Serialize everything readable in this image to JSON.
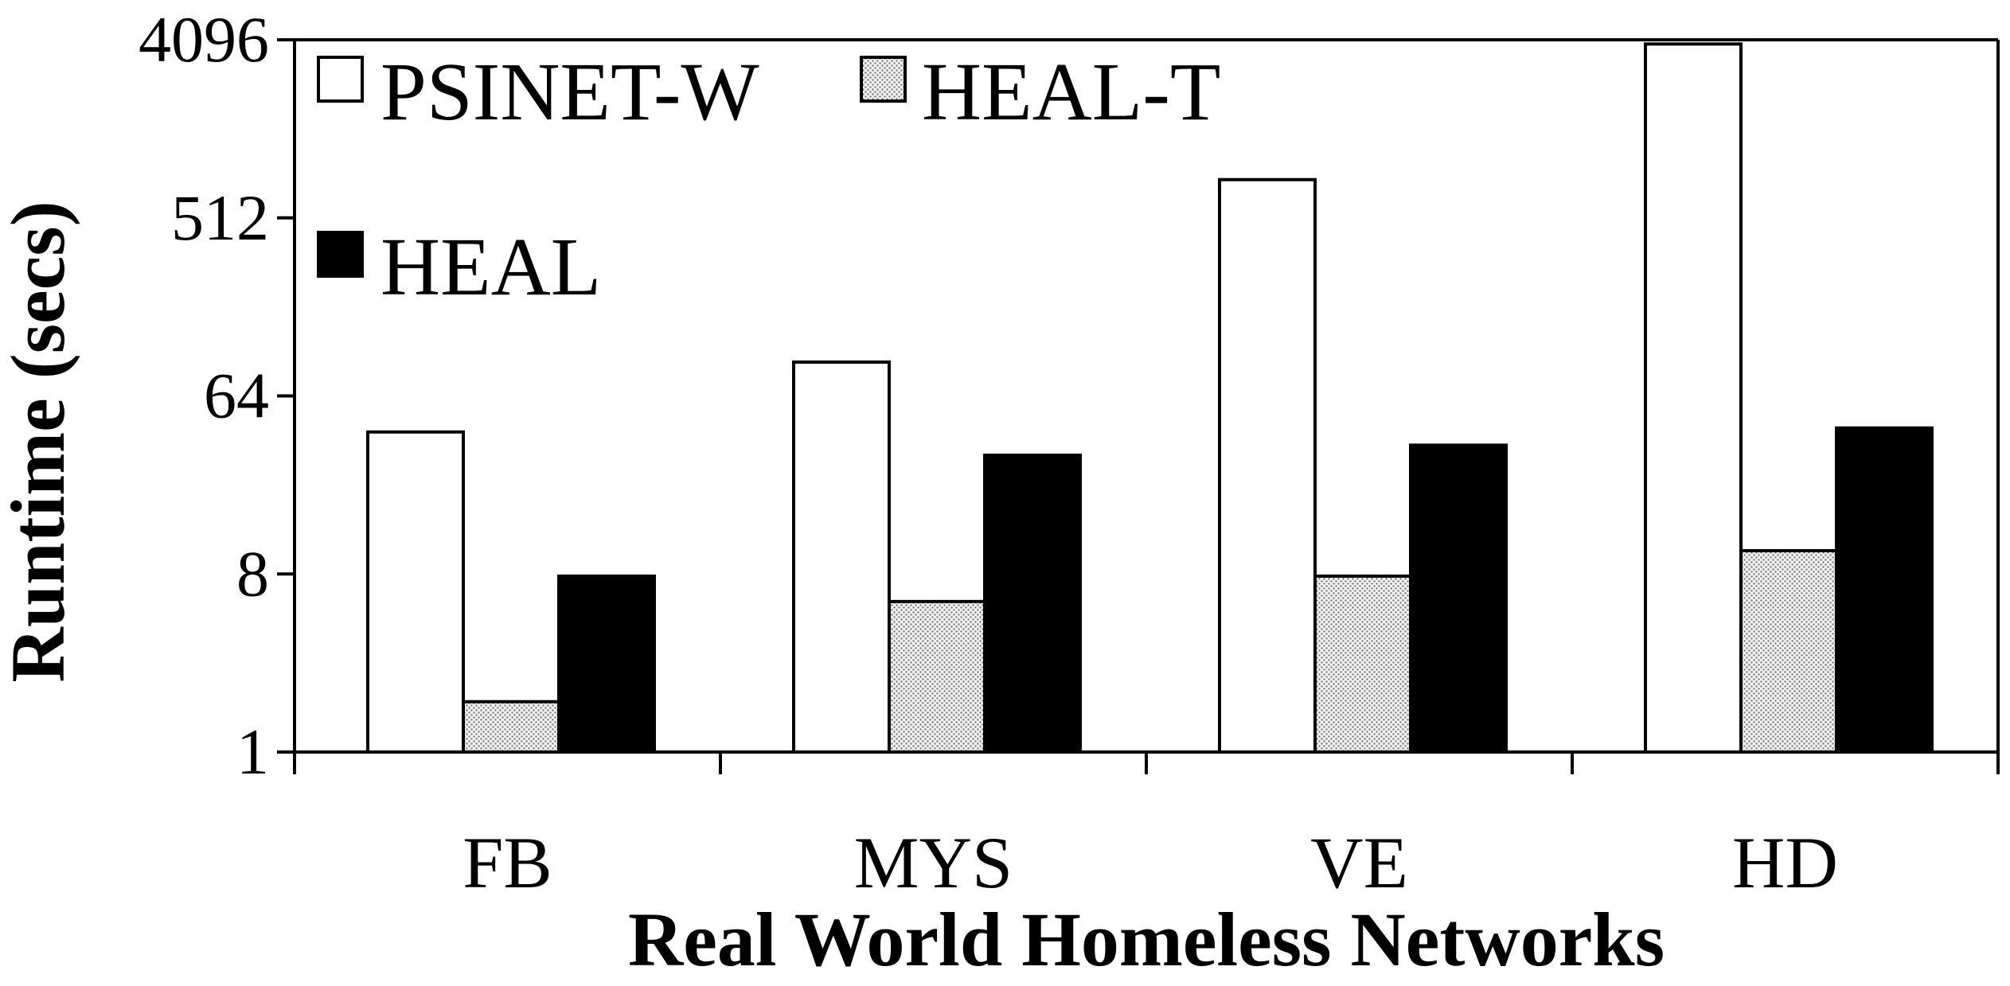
{
  "chart_data": {
    "type": "bar",
    "title": "",
    "xlabel": "Real World Homeless Networks",
    "ylabel": "Runtime (secs)",
    "y_scale": "log2",
    "ylim": [
      1,
      4096
    ],
    "yticks": [
      "1",
      "8",
      "64",
      "512",
      "4096"
    ],
    "ytick_values": [
      1,
      8,
      64,
      512,
      4096
    ],
    "categories": [
      "FB",
      "MYS",
      "VE",
      "HD"
    ],
    "series": [
      {
        "name": "PSINET-W",
        "color": "#ffffff",
        "fill": "solid-white",
        "values": [
          42,
          95,
          800,
          3900
        ]
      },
      {
        "name": "HEAL-T",
        "color": "#d8d8d8",
        "fill": "dotted-gray",
        "values": [
          1.8,
          5.8,
          7.8,
          10.5
        ]
      },
      {
        "name": "HEAL",
        "color": "#000000",
        "fill": "solid-black",
        "values": [
          7.8,
          32,
          36,
          44
        ]
      }
    ],
    "legend": {
      "position": "top-left"
    },
    "grid": false
  }
}
